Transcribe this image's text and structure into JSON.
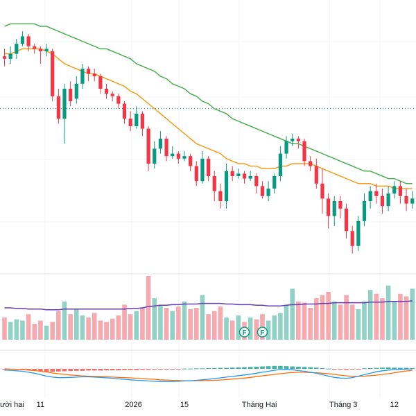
{
  "chart_data": {
    "type": "candlestick",
    "title": "",
    "colors": {
      "up": "#089981",
      "down": "#F23645",
      "up_volume": "#92D2C6",
      "down_volume": "#F7A9B0",
      "ma_short": "#F59E1B",
      "ma_long": "#4CAF50",
      "volume_ma": "#673AB7",
      "macd_line": "#2196F3",
      "signal_line": "#FF6D00",
      "hist_pos": "#26A69A",
      "hist_neg": "#EF5350",
      "grid": "#F0F3FA",
      "price_line": "#089981"
    },
    "price_axis": {
      "ylim": [
        0,
        100
      ],
      "last_price_level": 62
    },
    "candles": [
      [
        83,
        82,
        86,
        79
      ],
      [
        82,
        84,
        87,
        80
      ],
      [
        84,
        88,
        90,
        82
      ],
      [
        88,
        91,
        93,
        87
      ],
      [
        91,
        87,
        92,
        85
      ],
      [
        87,
        86,
        88,
        84
      ],
      [
        86,
        85,
        87,
        80
      ],
      [
        85,
        86,
        88,
        83
      ],
      [
        85,
        67,
        86,
        65
      ],
      [
        67,
        58,
        70,
        56
      ],
      [
        58,
        70,
        72,
        48
      ],
      [
        70,
        65,
        73,
        63
      ],
      [
        66,
        72,
        75,
        64
      ],
      [
        72,
        78,
        80,
        70
      ],
      [
        78,
        76,
        79,
        73
      ],
      [
        76,
        75,
        78,
        73
      ],
      [
        75,
        70,
        76,
        68
      ],
      [
        70,
        68,
        72,
        66
      ],
      [
        68,
        67,
        69,
        65
      ],
      [
        67,
        64,
        68,
        62
      ],
      [
        64,
        58,
        65,
        56
      ],
      [
        58,
        55,
        61,
        53
      ],
      [
        55,
        60,
        63,
        54
      ],
      [
        60,
        54,
        61,
        51
      ],
      [
        54,
        40,
        55,
        37
      ],
      [
        40,
        46,
        49,
        38
      ],
      [
        46,
        50,
        53,
        44
      ],
      [
        50,
        43,
        51,
        41
      ],
      [
        43,
        44,
        47,
        42
      ],
      [
        44,
        42,
        45,
        40
      ],
      [
        42,
        43,
        45,
        41
      ],
      [
        43,
        39,
        44,
        37
      ],
      [
        39,
        33,
        41,
        31
      ],
      [
        33,
        42,
        45,
        32
      ],
      [
        42,
        35,
        43,
        33
      ],
      [
        35,
        29,
        37,
        25
      ],
      [
        29,
        25,
        32,
        22
      ],
      [
        25,
        37,
        40,
        22
      ],
      [
        37,
        35,
        39,
        33
      ],
      [
        35,
        36,
        38,
        34
      ],
      [
        36,
        34,
        37,
        32
      ],
      [
        34,
        35,
        37,
        33
      ],
      [
        35,
        31,
        36,
        28
      ],
      [
        31,
        27,
        33,
        26
      ],
      [
        27,
        30,
        33,
        25
      ],
      [
        30,
        35,
        36,
        28
      ],
      [
        35,
        44,
        47,
        33
      ],
      [
        44,
        49,
        51,
        42
      ],
      [
        49,
        50,
        52,
        47
      ],
      [
        50,
        49,
        51,
        46
      ],
      [
        49,
        41,
        50,
        39
      ],
      [
        41,
        39,
        43,
        37
      ],
      [
        39,
        32,
        42,
        30
      ],
      [
        32,
        26,
        38,
        20
      ],
      [
        26,
        19,
        28,
        14
      ],
      [
        19,
        25,
        27,
        15
      ],
      [
        25,
        22,
        27,
        18
      ],
      [
        22,
        13,
        24,
        10
      ],
      [
        13,
        7,
        15,
        4
      ],
      [
        7,
        17,
        19,
        5
      ],
      [
        17,
        25,
        28,
        15
      ],
      [
        25,
        29,
        31,
        22
      ],
      [
        29,
        27,
        32,
        24
      ],
      [
        27,
        23,
        30,
        20
      ],
      [
        23,
        28,
        31,
        21
      ],
      [
        28,
        31,
        33,
        26
      ],
      [
        31,
        27,
        33,
        24
      ],
      [
        27,
        24,
        30,
        21
      ],
      [
        24,
        26,
        29,
        22
      ]
    ],
    "ma_short": [
      84,
      84,
      85,
      86,
      86,
      86,
      86,
      85,
      84,
      82,
      80,
      79,
      78,
      77,
      76,
      76,
      75,
      74,
      73,
      72,
      71,
      69,
      68,
      66,
      64,
      62,
      60,
      58,
      56,
      54,
      52,
      50,
      48,
      47,
      46,
      45,
      44,
      42,
      41,
      40,
      40,
      39,
      39,
      38,
      38,
      38,
      39,
      39,
      40,
      40,
      40,
      40,
      39,
      38,
      37,
      36,
      35,
      34,
      33,
      32,
      32,
      32,
      31,
      31,
      31,
      30,
      30,
      30,
      30
    ],
    "ma_long": [
      95,
      96,
      96,
      96,
      96,
      96,
      95,
      95,
      94,
      93,
      92,
      91,
      90,
      89,
      88,
      87,
      86,
      86,
      85,
      84,
      83,
      82,
      80,
      79,
      78,
      77,
      75,
      74,
      72,
      71,
      70,
      68,
      67,
      65,
      64,
      62,
      61,
      60,
      58,
      57,
      56,
      55,
      54,
      53,
      52,
      51,
      50,
      49,
      48,
      48,
      47,
      46,
      45,
      44,
      43,
      42,
      41,
      40,
      39,
      38,
      37,
      37,
      36,
      35,
      34,
      34,
      33,
      32,
      32
    ],
    "volume": [
      35,
      28,
      32,
      30,
      40,
      25,
      30,
      22,
      28,
      45,
      60,
      40,
      48,
      38,
      35,
      42,
      30,
      28,
      33,
      38,
      55,
      40,
      45,
      50,
      100,
      65,
      55,
      50,
      45,
      52,
      60,
      48,
      50,
      70,
      40,
      45,
      52,
      35,
      30,
      38,
      28,
      35,
      32,
      40,
      30,
      38,
      42,
      55,
      80,
      60,
      58,
      50,
      65,
      70,
      75,
      60,
      55,
      70,
      55,
      48,
      60,
      78,
      72,
      65,
      85,
      60,
      72,
      68,
      80
    ],
    "volume_ma": [
      50,
      50,
      49,
      49,
      48,
      48,
      48,
      47,
      47,
      47,
      48,
      48,
      48,
      48,
      48,
      48,
      48,
      48,
      48,
      48,
      48,
      49,
      49,
      50,
      52,
      53,
      54,
      54,
      55,
      55,
      56,
      56,
      56,
      57,
      57,
      57,
      57,
      56,
      56,
      55,
      55,
      55,
      54,
      54,
      53,
      53,
      53,
      54,
      55,
      55,
      56,
      56,
      56,
      57,
      57,
      58,
      58,
      58,
      58,
      58,
      58,
      59,
      59,
      59,
      60,
      60,
      60,
      60,
      61
    ],
    "macd_hist": [
      -2,
      -3,
      -4,
      -5,
      -6,
      -8,
      -10,
      -12,
      -12,
      -11,
      -10,
      -9,
      -8,
      -8,
      -7,
      -7,
      -7,
      -6,
      -6,
      -6,
      -5,
      -5,
      -5,
      -4,
      -4,
      -3,
      -3,
      -2,
      -1,
      -1,
      1,
      1,
      2,
      2,
      3,
      3,
      4,
      4,
      5,
      6,
      7,
      8,
      9,
      10,
      11,
      12,
      12,
      11,
      10,
      9,
      8,
      7,
      5,
      3,
      1,
      -2,
      -3,
      -4,
      -3,
      -2,
      2,
      3,
      4,
      5,
      6,
      5,
      4,
      4,
      3
    ],
    "macd_line": [
      -5,
      -6,
      -8,
      -10,
      -14,
      -18,
      -24,
      -30,
      -34,
      -36,
      -36,
      -35,
      -34,
      -33,
      -33,
      -34,
      -35,
      -37,
      -39,
      -41,
      -43,
      -45,
      -47,
      -48,
      -50,
      -51,
      -52,
      -52,
      -52,
      -51,
      -50,
      -49,
      -47,
      -45,
      -43,
      -40,
      -37,
      -34,
      -31,
      -28,
      -25,
      -22,
      -18,
      -14,
      -10,
      -6,
      -3,
      -2,
      -4,
      -7,
      -10,
      -14,
      -18,
      -24,
      -30,
      -35,
      -38,
      -39,
      -36,
      -30,
      -24,
      -18,
      -12,
      -8,
      -5,
      -3,
      -2,
      -1,
      0
    ],
    "signal_line": [
      0,
      -1,
      -2,
      -3,
      -5,
      -7,
      -10,
      -13,
      -17,
      -20,
      -23,
      -25,
      -27,
      -29,
      -30,
      -31,
      -32,
      -33,
      -34,
      -35,
      -36,
      -37,
      -39,
      -40,
      -42,
      -43,
      -45,
      -46,
      -47,
      -48,
      -49,
      -49,
      -49,
      -49,
      -48,
      -47,
      -46,
      -44,
      -42,
      -40,
      -38,
      -35,
      -32,
      -29,
      -26,
      -23,
      -20,
      -17,
      -15,
      -14,
      -14,
      -15,
      -16,
      -18,
      -20,
      -23,
      -26,
      -29,
      -31,
      -31,
      -30,
      -28,
      -26,
      -23,
      -20,
      -16,
      -12,
      -9,
      -6
    ],
    "dividend_markers": [
      {
        "index": 40,
        "label": "F"
      },
      {
        "index": 43,
        "label": "F"
      }
    ],
    "x_axis": {
      "labels": [
        {
          "text": "ười hai",
          "index": 0.5
        },
        {
          "text": "11",
          "index": 6
        },
        {
          "text": "2026",
          "index": 21.5
        },
        {
          "text": "15",
          "index": 30
        },
        {
          "text": "Tháng Hai",
          "index": 42.5
        },
        {
          "text": "Tháng 3",
          "index": 56.5
        },
        {
          "text": "12",
          "index": 65
        }
      ]
    }
  }
}
